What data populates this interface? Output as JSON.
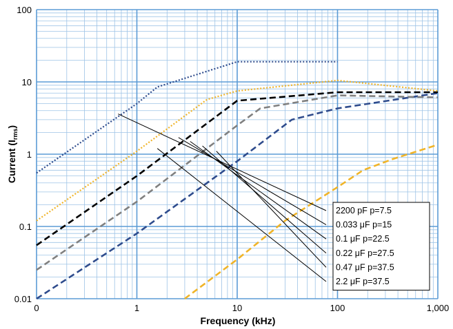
{
  "chart_data": {
    "type": "line",
    "xscale": "log",
    "yscale": "log",
    "xlim": [
      0.1,
      1000
    ],
    "ylim": [
      0.01,
      100
    ],
    "xlabel": "Frequency (kHz)",
    "ylabel": "Current (I",
    "ylabel_sub": "rms",
    "ylabel_end": ")",
    "x_ticks": [
      {
        "value": 0.1,
        "label": "0"
      },
      {
        "value": 1,
        "label": "1"
      },
      {
        "value": 10,
        "label": "10"
      },
      {
        "value": 100,
        "label": "100"
      },
      {
        "value": 1000,
        "label": "1,000"
      }
    ],
    "y_ticks": [
      {
        "value": 100,
        "label": "100"
      },
      {
        "value": 10,
        "label": "10"
      },
      {
        "value": 1,
        "label": "1"
      },
      {
        "value": 0.1,
        "label": "0.1"
      },
      {
        "value": 0.01,
        "label": "0.01"
      }
    ],
    "grid": true,
    "colors": {
      "grid_major": "#5b9bd5",
      "grid_minor": "#9dc3e6",
      "background": "#ffffff"
    },
    "series": [
      {
        "label_id": "2200pF",
        "color": "#f0b428",
        "dash": "dash",
        "points": [
          [
            3,
            0.01
          ],
          [
            10,
            0.035
          ],
          [
            30,
            0.12
          ],
          [
            100,
            0.35
          ],
          [
            180,
            0.6
          ],
          [
            350,
            0.85
          ],
          [
            1000,
            1.35
          ]
        ]
      },
      {
        "label_id": "0.033uF",
        "color": "#2e4b8c",
        "dash": "dash",
        "points": [
          [
            0.1,
            0.01
          ],
          [
            1,
            0.08
          ],
          [
            10,
            0.8
          ],
          [
            35,
            3.0
          ],
          [
            100,
            4.3
          ],
          [
            1000,
            7.0
          ]
        ]
      },
      {
        "label_id": "0.1uF",
        "color": "#808080",
        "dash": "dash",
        "points": [
          [
            0.1,
            0.025
          ],
          [
            1,
            0.22
          ],
          [
            10,
            2.5
          ],
          [
            17,
            4.3
          ],
          [
            100,
            6.5
          ],
          [
            1000,
            6.1
          ]
        ]
      },
      {
        "label_id": "0.22uF",
        "color": "#000000",
        "dash": "dash",
        "points": [
          [
            0.1,
            0.055
          ],
          [
            1,
            0.5
          ],
          [
            10,
            5.5
          ],
          [
            100,
            7.2
          ],
          [
            1000,
            7.2
          ]
        ]
      },
      {
        "label_id": "0.47uF",
        "color": "#f0b428",
        "dash": "dot",
        "points": [
          [
            0.1,
            0.12
          ],
          [
            1,
            1.1
          ],
          [
            5,
            5.7
          ],
          [
            10,
            7.5
          ],
          [
            100,
            10.5
          ],
          [
            1000,
            7.5
          ]
        ]
      },
      {
        "label_id": "2.2uF",
        "color": "#2e4b8c",
        "dash": "dot",
        "points": [
          [
            0.1,
            0.55
          ],
          [
            1,
            5.0
          ],
          [
            1.6,
            8.5
          ],
          [
            10,
            19
          ],
          [
            100,
            19
          ]
        ]
      }
    ],
    "legend": {
      "placement": "lower-right",
      "entries": [
        {
          "text": "2200 pF  p=7.5",
          "points_to": [
            0.65,
            3.6
          ]
        },
        {
          "text": "0.033 μF   p=15",
          "points_to": [
            2.6,
            1.7
          ]
        },
        {
          "text": "0.1   μF   p=22.5",
          "points_to": [
            3.4,
            1.5
          ]
        },
        {
          "text": "0.22  μF   p=27.5",
          "points_to": [
            4.5,
            1.3
          ]
        },
        {
          "text": "0.47  μF    p=37.5",
          "points_to": [
            6.2,
            1.1
          ]
        },
        {
          "text": "2.2   μF   p=37.5",
          "points_to": [
            1.6,
            1.2
          ]
        }
      ]
    }
  }
}
